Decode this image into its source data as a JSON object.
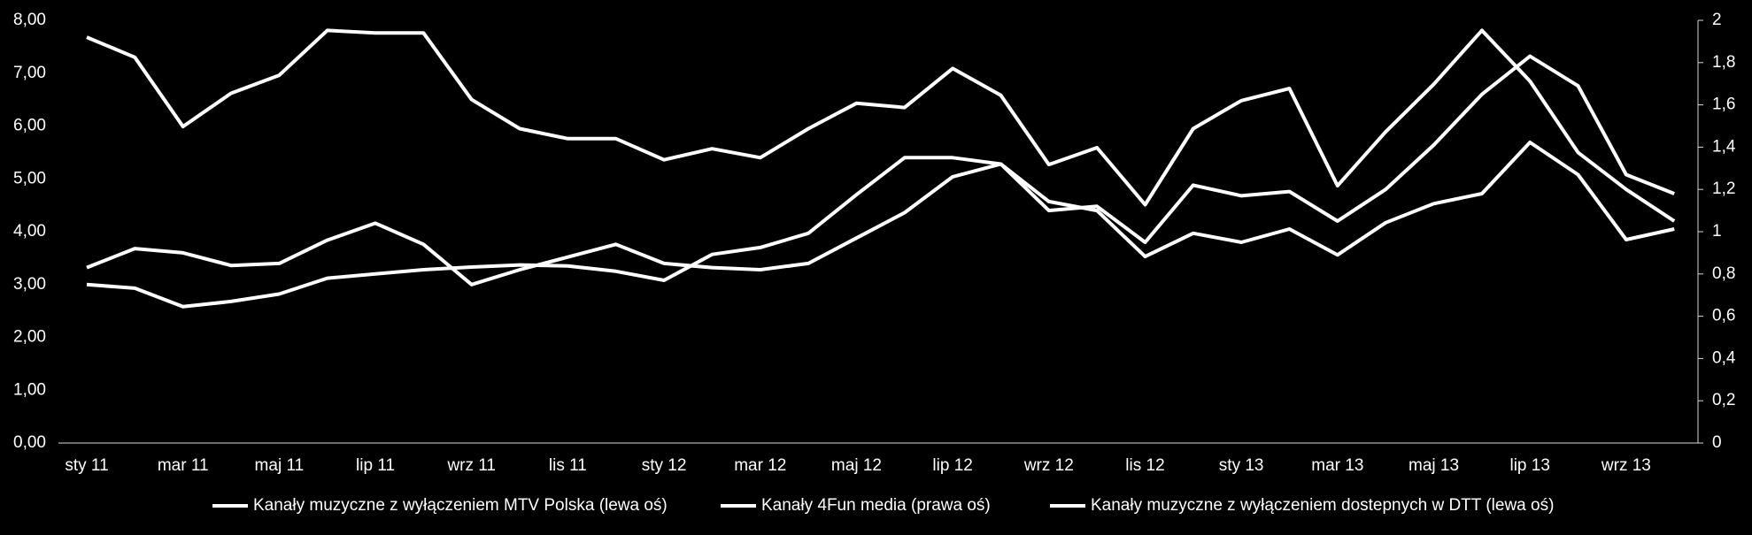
{
  "chart_data": {
    "type": "line",
    "categories": [
      "sty 11",
      null,
      "mar 11",
      null,
      "maj 11",
      null,
      "lip 11",
      null,
      "wrz 11",
      null,
      "lis 11",
      null,
      "sty 12",
      null,
      "mar 12",
      null,
      "maj 12",
      null,
      "lip 12",
      null,
      "wrz 12",
      null,
      "lis 12",
      null,
      "sty 13",
      null,
      "mar 13",
      null,
      "maj 13",
      null,
      "lip 13",
      null,
      "wrz 13",
      null
    ],
    "series": [
      {
        "name": "Kanały muzyczne z wyłączeniem MTV Polska (lewa oś)",
        "color": "#ffffff",
        "values": [
          7.68,
          7.3,
          5.99,
          6.62,
          6.96,
          7.81,
          7.76,
          7.76,
          6.5,
          5.95,
          5.76,
          5.76,
          5.36,
          5.57,
          5.4,
          5.95,
          6.43,
          6.35,
          7.09,
          6.58,
          5.27,
          5.59,
          4.51,
          5.95,
          6.48,
          6.71,
          4.87,
          5.89,
          6.79,
          7.81,
          6.85,
          5.5,
          4.8,
          4.2
        ]
      },
      {
        "name": "Kanały 4Fun media (prawa oś)",
        "color": "#ffffff",
        "axis": "y2",
        "values": [
          0.83,
          0.92,
          0.9,
          0.84,
          0.85,
          0.96,
          1.04,
          0.94,
          0.75,
          0.82,
          0.88,
          0.94,
          0.85,
          0.83,
          0.82,
          0.85,
          0.97,
          1.09,
          1.26,
          1.32,
          1.1,
          1.12,
          0.95,
          1.22,
          1.17,
          1.19,
          1.05,
          1.2,
          1.41,
          1.65,
          1.83,
          1.69,
          1.27,
          1.18
        ]
      },
      {
        "name": "Kanały muzyczne z wyłączeniem dostepnych w DTT (lewa oś)",
        "color": "#ffffff",
        "values": [
          3.0,
          2.93,
          2.58,
          2.68,
          2.82,
          3.12,
          3.2,
          3.28,
          3.33,
          3.37,
          3.35,
          3.25,
          3.08,
          3.57,
          3.7,
          3.97,
          4.7,
          5.4,
          5.4,
          5.28,
          4.57,
          4.4,
          3.53,
          3.97,
          3.8,
          4.05,
          3.56,
          4.17,
          4.53,
          4.72,
          5.69,
          5.08,
          3.85,
          4.05
        ]
      }
    ],
    "ylim": [
      0,
      8
    ],
    "yticks": [
      {
        "value": 0,
        "label": "0,00"
      },
      {
        "value": 1,
        "label": "1,00"
      },
      {
        "value": 2,
        "label": "2,00"
      },
      {
        "value": 3,
        "label": "3,00"
      },
      {
        "value": 4,
        "label": "4,00"
      },
      {
        "value": 5,
        "label": "5,00"
      },
      {
        "value": 6,
        "label": "6,00"
      },
      {
        "value": 7,
        "label": "7,00"
      },
      {
        "value": 8,
        "label": "8,00"
      }
    ],
    "y2lim": [
      0,
      2
    ],
    "y2ticks": [
      0,
      {
        "value": 0.2,
        "label": "0,2"
      },
      {
        "value": 0.4,
        "label": "0,4"
      },
      {
        "value": 0.6,
        "label": "0,6"
      },
      {
        "value": 0.8,
        "label": "0,8"
      },
      1,
      {
        "value": 1.2,
        "label": "1,2"
      },
      {
        "value": 1.4,
        "label": "1,4"
      },
      {
        "value": 1.6,
        "label": "1,6"
      },
      {
        "value": 1.8,
        "label": "1,8"
      },
      2
    ],
    "legend": "bottom"
  }
}
